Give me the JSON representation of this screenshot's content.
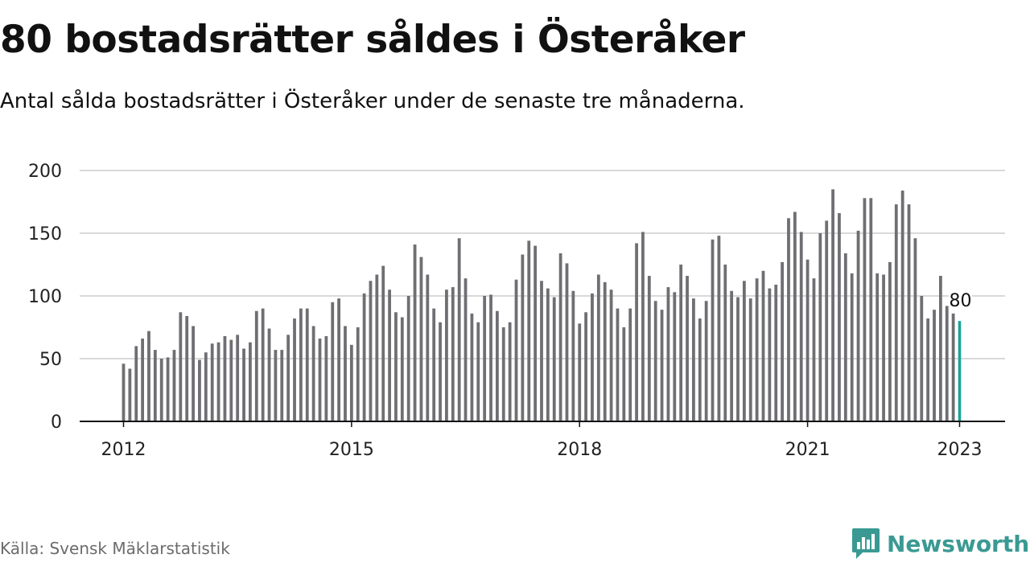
{
  "header": {
    "title": "80 bostadsrätter såldes i Österåker",
    "subtitle": "Antal sålda bostadsrätter i Österåker under de senaste tre månaderna."
  },
  "footer": {
    "source": "Källa: Svensk Mäklarstatistik",
    "brand": "Newsworthy",
    "brand_icon": "newsworthy-logo-icon"
  },
  "colors": {
    "bar": "#6f6f73",
    "highlight": "#1aa39a",
    "grid": "#d9d9d9",
    "axis": "#111111",
    "brand": "#3a9a93"
  },
  "chart_data": {
    "type": "bar",
    "title": "80 bostadsrätter såldes i Österåker",
    "subtitle": "Antal sålda bostadsrätter i Österåker under de senaste tre månaderna.",
    "xlabel": "",
    "ylabel": "",
    "ylim": [
      0,
      200
    ],
    "y_ticks": [
      0,
      50,
      100,
      150,
      200
    ],
    "x_ticks": [
      "2012",
      "2015",
      "2018",
      "2021",
      "2023"
    ],
    "grid": true,
    "legend": "none",
    "x_start": "2012-01",
    "x_end": "2023-01",
    "frequency": "monthly",
    "highlight_last": true,
    "last_label": "80",
    "values": [
      46,
      42,
      60,
      66,
      72,
      57,
      50,
      51,
      57,
      87,
      84,
      76,
      49,
      55,
      62,
      63,
      68,
      65,
      69,
      58,
      63,
      88,
      90,
      74,
      57,
      57,
      69,
      82,
      90,
      90,
      76,
      66,
      68,
      95,
      98,
      76,
      61,
      75,
      102,
      112,
      117,
      124,
      105,
      87,
      83,
      100,
      141,
      131,
      117,
      90,
      79,
      105,
      107,
      146,
      114,
      86,
      79,
      100,
      101,
      88,
      75,
      79,
      113,
      133,
      144,
      140,
      112,
      106,
      99,
      134,
      126,
      104,
      78,
      87,
      102,
      117,
      111,
      105,
      90,
      75,
      90,
      142,
      151,
      116,
      96,
      89,
      107,
      103,
      125,
      116,
      98,
      82,
      96,
      145,
      148,
      125,
      104,
      99,
      112,
      98,
      114,
      120,
      106,
      109,
      127,
      162,
      167,
      151,
      129,
      114,
      150,
      160,
      185,
      166,
      134,
      118,
      152,
      178,
      178,
      118,
      117,
      127,
      173,
      184,
      173,
      146,
      100,
      82,
      89,
      116,
      92,
      86,
      80
    ]
  }
}
